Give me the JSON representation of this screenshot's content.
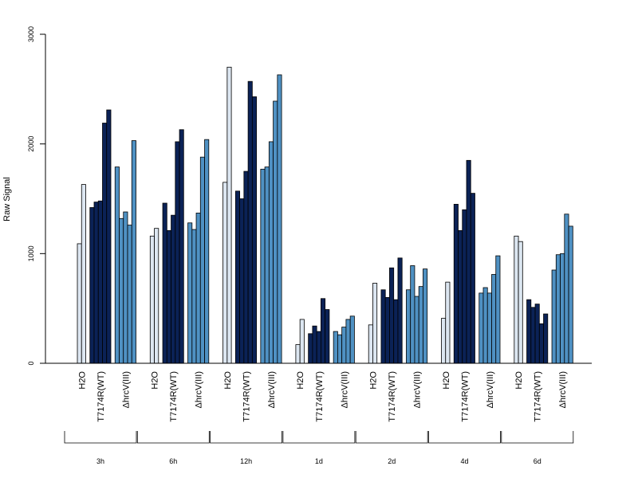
{
  "chart_data": {
    "type": "bar",
    "ylabel": "Raw Signal",
    "ylim": [
      0,
      3000
    ],
    "yticks": [
      "0",
      "1000",
      "2000",
      "3000"
    ],
    "grid": false,
    "legend": "none",
    "timepoints": [
      "3h",
      "6h",
      "12h",
      "1d",
      "2d",
      "4d",
      "6d"
    ],
    "groups": [
      "H2O",
      "T7174R(WT)",
      "ΔhrcV(III)"
    ],
    "colors": {
      "H2O": "#dce6f1",
      "T7174R(WT)": "#0b2256",
      "ΔhrcV(III)": "#4f91c3"
    },
    "values": [
      [
        [
          1090,
          1630
        ],
        [
          1420,
          1470,
          1480,
          2190,
          2310
        ],
        [
          1790,
          1320,
          1380,
          1260,
          2030
        ]
      ],
      [
        [
          1160,
          1230
        ],
        [
          1460,
          1210,
          1350,
          2020,
          2130
        ],
        [
          1280,
          1220,
          1370,
          1880,
          2040
        ]
      ],
      [
        [
          1650,
          2700
        ],
        [
          1570,
          1500,
          1750,
          2570,
          2430
        ],
        [
          1770,
          1790,
          2020,
          2390,
          2630
        ]
      ],
      [
        [
          170,
          400
        ],
        [
          270,
          340,
          290,
          590,
          490
        ],
        [
          290,
          260,
          330,
          400,
          430
        ]
      ],
      [
        [
          350,
          730
        ],
        [
          670,
          600,
          870,
          580,
          960
        ],
        [
          670,
          890,
          610,
          700,
          860
        ]
      ],
      [
        [
          410,
          740
        ],
        [
          1450,
          1210,
          1400,
          1850,
          1550
        ],
        [
          640,
          690,
          640,
          810,
          980
        ]
      ],
      [
        [
          1160,
          1110
        ],
        [
          580,
          510,
          540,
          360,
          450
        ],
        [
          850,
          990,
          1000,
          1360,
          1250
        ]
      ]
    ]
  }
}
